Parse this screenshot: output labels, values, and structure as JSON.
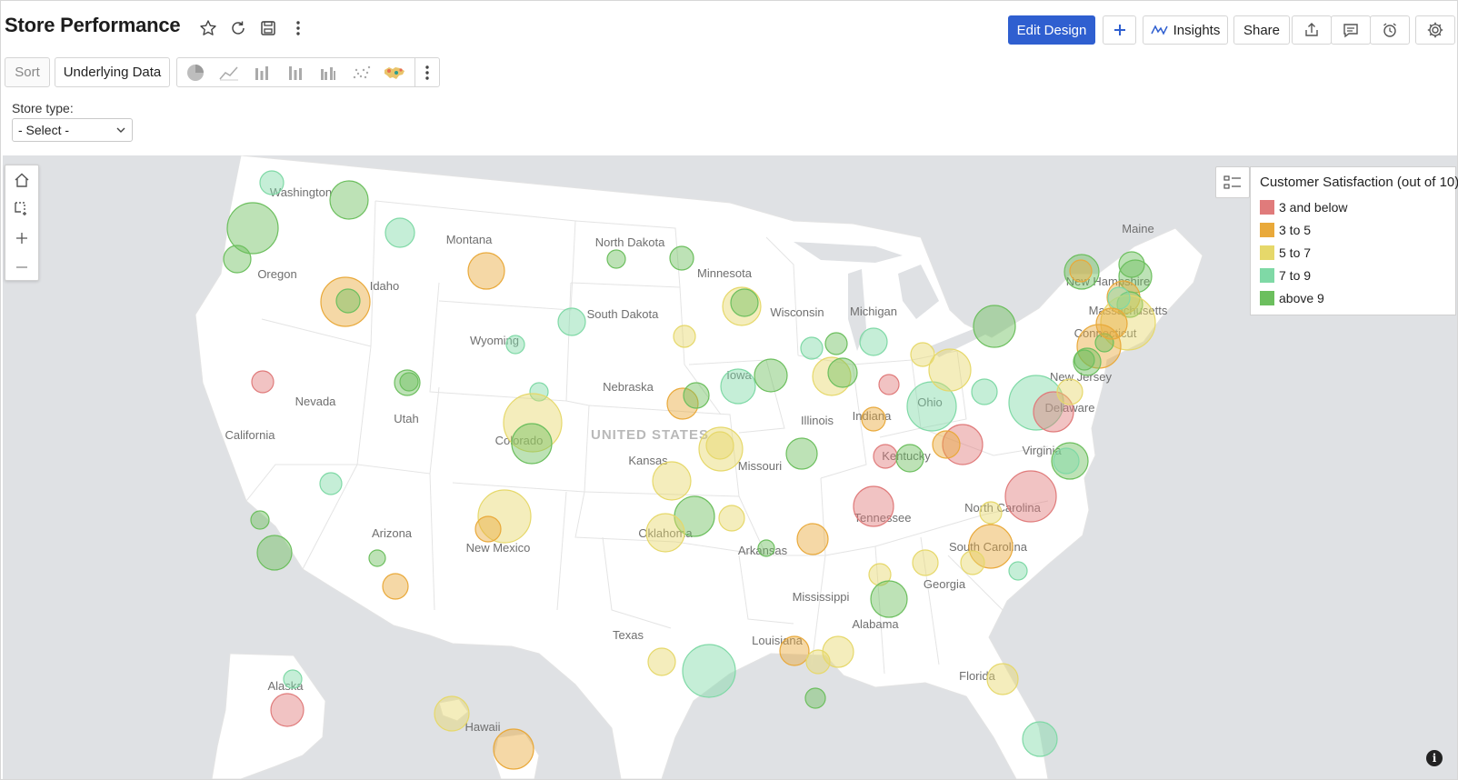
{
  "header": {
    "title": "Store Performance",
    "buttons": {
      "edit_design": "Edit Design",
      "insights": "Insights",
      "share": "Share"
    }
  },
  "toolbar": {
    "sort": "Sort",
    "underlying_data": "Underlying Data"
  },
  "filter": {
    "label": "Store type:",
    "selected": "- Select -"
  },
  "map": {
    "country_label": "UNITED STATES",
    "state_labels": [
      "Washington",
      "Oregon",
      "Idaho",
      "Montana",
      "North Dakota",
      "Minnesota",
      "South Dakota",
      "Wyoming",
      "Nevada",
      "Utah",
      "California",
      "Colorado",
      "Nebraska",
      "Iowa",
      "Wisconsin",
      "Michigan",
      "Illinois",
      "Indiana",
      "Ohio",
      "Kansas",
      "Missouri",
      "Kentucky",
      "Arizona",
      "New Mexico",
      "Oklahoma",
      "Arkansas",
      "Tennessee",
      "North Carolina",
      "South Carolina",
      "Georgia",
      "Mississippi",
      "Alabama",
      "Texas",
      "Louisiana",
      "Florida",
      "Alaska",
      "Hawaii",
      "Virginia",
      "Maine",
      "New Hampshire",
      "Massachusetts",
      "Connecticut",
      "New Jersey",
      "Delaware"
    ]
  },
  "legend": {
    "title": "Customer Satisfaction (out of 10)",
    "items": [
      {
        "label": "3 and below",
        "color": "#e07b7b"
      },
      {
        "label": "3 to 5",
        "color": "#e9a93a"
      },
      {
        "label": "5 to 7",
        "color": "#e6d86a"
      },
      {
        "label": "7 to 9",
        "color": "#7fd9a6"
      },
      {
        "label": "above 9",
        "color": "#6cbf5e"
      }
    ]
  },
  "colors": {
    "primary": "#2f5fd0",
    "map_bg": "#dfe1e4",
    "land": "#ffffff"
  }
}
